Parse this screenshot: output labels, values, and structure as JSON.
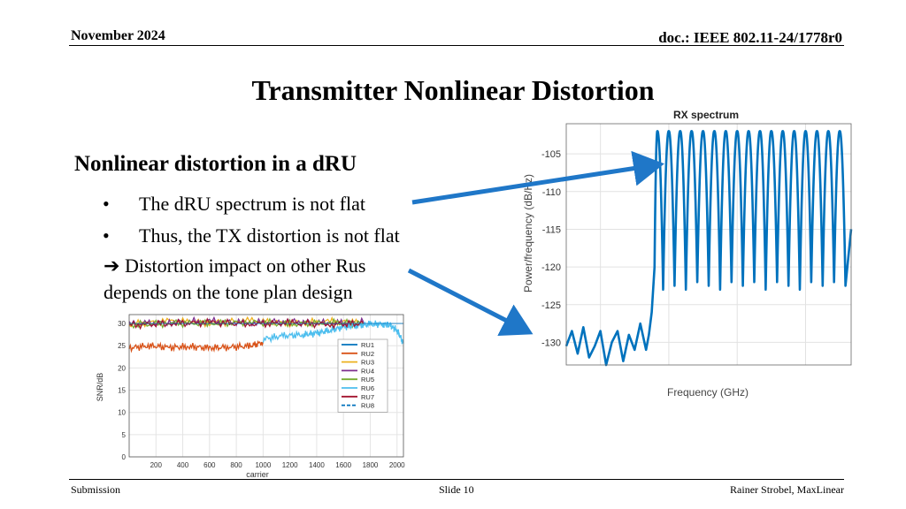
{
  "header": {
    "date": "November 2024",
    "doc": "doc.: IEEE 802.11-24/1778r0"
  },
  "slide_title": "Transmitter Nonlinear Distortion",
  "content": {
    "subheading": "Nonlinear distortion in a dRU",
    "bullets": [
      "The dRU spectrum is not flat",
      "Thus, the TX distortion is not flat"
    ],
    "implication_line1": "Distortion impact on other Rus",
    "implication_line2": "depends on the tone plan design"
  },
  "footer": {
    "left": "Submission",
    "center": "Slide 10",
    "right": "Rainer Strobel, MaxLinear"
  },
  "colors": {
    "ru1": "#0072BD",
    "ru2": "#D95319",
    "ru3": "#EDB120",
    "ru4": "#7E2F8E",
    "ru5": "#77AC30",
    "ru6": "#4DBEEE",
    "ru7": "#A2142F",
    "ru8": "#0072BD",
    "annotation_arrow": "#1F77C8"
  },
  "chart_data": [
    {
      "type": "line",
      "title": "",
      "xlabel": "carrier",
      "ylabel": "SNR/dB",
      "xlim": [
        0,
        2048
      ],
      "ylim": [
        0,
        32
      ],
      "xticks": [
        200,
        400,
        600,
        800,
        1000,
        1200,
        1400,
        1600,
        1800,
        2000
      ],
      "yticks": [
        0,
        5,
        10,
        15,
        20,
        25,
        30
      ],
      "grid": true,
      "legend_position": "right",
      "series": [
        {
          "name": "RU1",
          "x": [
            0,
            2048
          ],
          "values": [
            30,
            30
          ]
        },
        {
          "name": "RU2",
          "x": [
            0,
            150,
            300,
            450,
            600,
            750,
            900,
            1000
          ],
          "values": [
            24.5,
            25,
            24.6,
            24.8,
            24.5,
            24.7,
            24.9,
            25.8
          ]
        },
        {
          "name": "RU3",
          "x": [
            0,
            300,
            600,
            900,
            1200,
            1500,
            1750
          ],
          "values": [
            29.8,
            30.5,
            30.2,
            30.6,
            30.1,
            30.4,
            30.2
          ]
        },
        {
          "name": "RU4",
          "x": [
            0,
            300,
            600,
            900,
            1200,
            1500,
            1750
          ],
          "values": [
            29.9,
            30.3,
            30.5,
            30.2,
            30.4,
            30.1,
            30.3
          ]
        },
        {
          "name": "RU5",
          "x": [
            0,
            300,
            600,
            900,
            1200,
            1500,
            1750
          ],
          "values": [
            29.7,
            30.1,
            30,
            30.3,
            29.9,
            30.2,
            30
          ]
        },
        {
          "name": "RU6",
          "x": [
            1000,
            1150,
            1300,
            1400,
            1500,
            1600,
            1700,
            1800,
            1900,
            1950,
            2000,
            2048
          ],
          "values": [
            26.5,
            27.2,
            27.5,
            27.8,
            28.5,
            29.2,
            29.6,
            29.8,
            29.9,
            29.5,
            28.5,
            25.5
          ]
        },
        {
          "name": "RU7",
          "x": [
            0,
            300,
            600,
            900,
            1200,
            1500,
            1750
          ],
          "values": [
            29.6,
            30,
            30.2,
            29.9,
            30.1,
            29.8,
            30
          ]
        },
        {
          "name": "RU8",
          "x": [
            0,
            2048
          ],
          "values": [
            30,
            30
          ]
        }
      ]
    },
    {
      "type": "line",
      "title": "RX spectrum",
      "xlabel": "Frequency (GHz)",
      "ylabel": "Power/frequency (dB/Hz)",
      "ylim": [
        -133,
        -101
      ],
      "yticks": [
        -105,
        -110,
        -115,
        -120,
        -125,
        -130
      ],
      "grid": true,
      "series": [
        {
          "name": "",
          "x": [
            0.0,
            0.02,
            0.04,
            0.06,
            0.08,
            0.1,
            0.12,
            0.14,
            0.16,
            0.18,
            0.2,
            0.22,
            0.24,
            0.26,
            0.28,
            0.29,
            0.3,
            0.31,
            0.32,
            0.34,
            0.36,
            0.38,
            0.4,
            0.42,
            0.44,
            0.46,
            0.48,
            0.5,
            0.52,
            0.54,
            0.56,
            0.58,
            0.6,
            0.62,
            0.64,
            0.66,
            0.68,
            0.7,
            0.72,
            0.74,
            0.76,
            0.78,
            0.8,
            0.82,
            0.84,
            0.86,
            0.88,
            0.9,
            0.92,
            0.94,
            0.96,
            0.98,
            1.0
          ],
          "values": [
            -130.5,
            -128.5,
            -131.5,
            -128,
            -132,
            -130.5,
            -128.5,
            -133,
            -130,
            -128.5,
            -132.5,
            -129,
            -131,
            -127.5,
            -131,
            -129,
            -126,
            -120,
            -102,
            -123,
            -102,
            -122.5,
            -102,
            -123,
            -102,
            -122,
            -102,
            -122.5,
            -102,
            -123,
            -102,
            -122,
            -102,
            -122.5,
            -102,
            -122,
            -102,
            -123,
            -102,
            -122,
            -102,
            -122.5,
            -102,
            -123,
            -102,
            -122,
            -102,
            -122.5,
            -102,
            -122,
            -102,
            -122.5,
            -115
          ]
        }
      ]
    }
  ]
}
